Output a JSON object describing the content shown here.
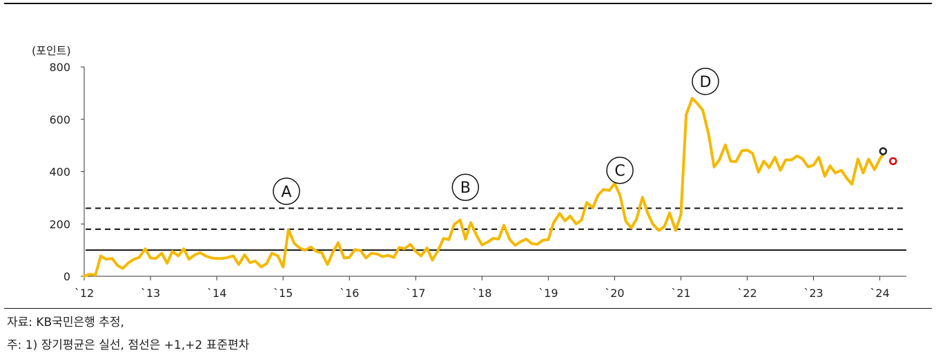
{
  "chart_data": {
    "type": "line",
    "ylabel": "(포인트)",
    "ylim": [
      0,
      800
    ],
    "yticks": [
      "0",
      "200",
      "400",
      "600",
      "800"
    ],
    "xlim": [
      2012,
      2024.4
    ],
    "xtick_labels": [
      "`12",
      "`13",
      "`14",
      "`15",
      "`16",
      "`17",
      "`18",
      "`19",
      "`20",
      "`21",
      "`22",
      "`23",
      "`24"
    ],
    "reference_lines": [
      {
        "value": 100,
        "style": "solid"
      },
      {
        "value": 180,
        "style": "dashed"
      },
      {
        "value": 260,
        "style": "dashed"
      }
    ],
    "annotations": [
      {
        "label": "A",
        "x": 2015.05,
        "y": 325
      },
      {
        "label": "B",
        "x": 2017.75,
        "y": 340
      },
      {
        "label": "C",
        "x": 2020.08,
        "y": 405
      },
      {
        "label": "D",
        "x": 2021.37,
        "y": 745
      }
    ],
    "series": [
      {
        "color": "#f5b800",
        "points": [
          [
            2012.0,
            0
          ],
          [
            2012.08,
            8
          ],
          [
            2012.17,
            5
          ],
          [
            2012.25,
            78
          ],
          [
            2012.33,
            65
          ],
          [
            2012.42,
            68
          ],
          [
            2012.5,
            42
          ],
          [
            2012.58,
            30
          ],
          [
            2012.67,
            52
          ],
          [
            2012.75,
            65
          ],
          [
            2012.83,
            72
          ],
          [
            2012.92,
            105
          ],
          [
            2013.0,
            70
          ],
          [
            2013.08,
            68
          ],
          [
            2013.17,
            88
          ],
          [
            2013.25,
            50
          ],
          [
            2013.33,
            95
          ],
          [
            2013.42,
            78
          ],
          [
            2013.5,
            105
          ],
          [
            2013.58,
            65
          ],
          [
            2013.67,
            82
          ],
          [
            2013.75,
            90
          ],
          [
            2013.83,
            78
          ],
          [
            2013.92,
            70
          ],
          [
            2014.0,
            68
          ],
          [
            2014.08,
            68
          ],
          [
            2014.17,
            72
          ],
          [
            2014.25,
            78
          ],
          [
            2014.33,
            45
          ],
          [
            2014.42,
            82
          ],
          [
            2014.5,
            52
          ],
          [
            2014.58,
            58
          ],
          [
            2014.67,
            36
          ],
          [
            2014.75,
            48
          ],
          [
            2014.83,
            88
          ],
          [
            2014.92,
            78
          ],
          [
            2015.0,
            35
          ],
          [
            2015.08,
            178
          ],
          [
            2015.17,
            125
          ],
          [
            2015.25,
            108
          ],
          [
            2015.33,
            100
          ],
          [
            2015.42,
            112
          ],
          [
            2015.5,
            95
          ],
          [
            2015.58,
            90
          ],
          [
            2015.67,
            45
          ],
          [
            2015.75,
            92
          ],
          [
            2015.83,
            128
          ],
          [
            2015.92,
            70
          ],
          [
            2016.0,
            72
          ],
          [
            2016.08,
            102
          ],
          [
            2016.17,
            98
          ],
          [
            2016.25,
            70
          ],
          [
            2016.33,
            88
          ],
          [
            2016.42,
            85
          ],
          [
            2016.5,
            75
          ],
          [
            2016.58,
            80
          ],
          [
            2016.67,
            72
          ],
          [
            2016.75,
            110
          ],
          [
            2016.83,
            105
          ],
          [
            2016.92,
            122
          ],
          [
            2017.0,
            95
          ],
          [
            2017.08,
            78
          ],
          [
            2017.17,
            108
          ],
          [
            2017.25,
            62
          ],
          [
            2017.33,
            95
          ],
          [
            2017.42,
            145
          ],
          [
            2017.5,
            140
          ],
          [
            2017.58,
            198
          ],
          [
            2017.67,
            215
          ],
          [
            2017.75,
            142
          ],
          [
            2017.83,
            205
          ],
          [
            2017.92,
            155
          ],
          [
            2018.0,
            120
          ],
          [
            2018.08,
            130
          ],
          [
            2018.17,
            145
          ],
          [
            2018.25,
            142
          ],
          [
            2018.33,
            195
          ],
          [
            2018.42,
            140
          ],
          [
            2018.5,
            118
          ],
          [
            2018.58,
            132
          ],
          [
            2018.67,
            142
          ],
          [
            2018.75,
            125
          ],
          [
            2018.83,
            122
          ],
          [
            2018.92,
            138
          ],
          [
            2019.0,
            140
          ],
          [
            2019.08,
            205
          ],
          [
            2019.17,
            240
          ],
          [
            2019.25,
            212
          ],
          [
            2019.33,
            230
          ],
          [
            2019.42,
            200
          ],
          [
            2019.5,
            215
          ],
          [
            2019.58,
            282
          ],
          [
            2019.67,
            262
          ],
          [
            2019.75,
            310
          ],
          [
            2019.83,
            332
          ],
          [
            2019.92,
            328
          ],
          [
            2020.0,
            355
          ],
          [
            2020.08,
            310
          ],
          [
            2020.17,
            210
          ],
          [
            2020.25,
            185
          ],
          [
            2020.33,
            218
          ],
          [
            2020.42,
            302
          ],
          [
            2020.5,
            240
          ],
          [
            2020.58,
            198
          ],
          [
            2020.67,
            175
          ],
          [
            2020.75,
            190
          ],
          [
            2020.83,
            242
          ],
          [
            2020.92,
            175
          ],
          [
            2021.0,
            235
          ],
          [
            2021.08,
            618
          ],
          [
            2021.17,
            680
          ],
          [
            2021.25,
            660
          ],
          [
            2021.33,
            635
          ],
          [
            2021.42,
            540
          ],
          [
            2021.5,
            418
          ],
          [
            2021.58,
            445
          ],
          [
            2021.67,
            502
          ],
          [
            2021.75,
            440
          ],
          [
            2021.83,
            438
          ],
          [
            2021.92,
            480
          ],
          [
            2022.0,
            482
          ],
          [
            2022.08,
            470
          ],
          [
            2022.17,
            398
          ],
          [
            2022.25,
            440
          ],
          [
            2022.33,
            415
          ],
          [
            2022.42,
            455
          ],
          [
            2022.5,
            405
          ],
          [
            2022.58,
            445
          ],
          [
            2022.67,
            445
          ],
          [
            2022.75,
            460
          ],
          [
            2022.83,
            450
          ],
          [
            2022.92,
            418
          ],
          [
            2023.0,
            425
          ],
          [
            2023.08,
            455
          ],
          [
            2023.17,
            382
          ],
          [
            2023.25,
            422
          ],
          [
            2023.33,
            395
          ],
          [
            2023.42,
            405
          ],
          [
            2023.5,
            375
          ],
          [
            2023.58,
            352
          ],
          [
            2023.67,
            448
          ],
          [
            2023.75,
            395
          ],
          [
            2023.83,
            448
          ],
          [
            2023.92,
            408
          ],
          [
            2024.0,
            448
          ],
          [
            2024.08,
            478
          ]
        ],
        "markers": [
          {
            "x": 2024.05,
            "y": 478,
            "color": "#222222"
          },
          {
            "x": 2024.2,
            "y": 440,
            "color": "#e00000"
          }
        ]
      }
    ]
  },
  "footnotes": {
    "source": "자료: KB국민은행 추정,",
    "note": "주: 1) 장기평균은 실선, 점선은 +1,+2 표준편차"
  }
}
